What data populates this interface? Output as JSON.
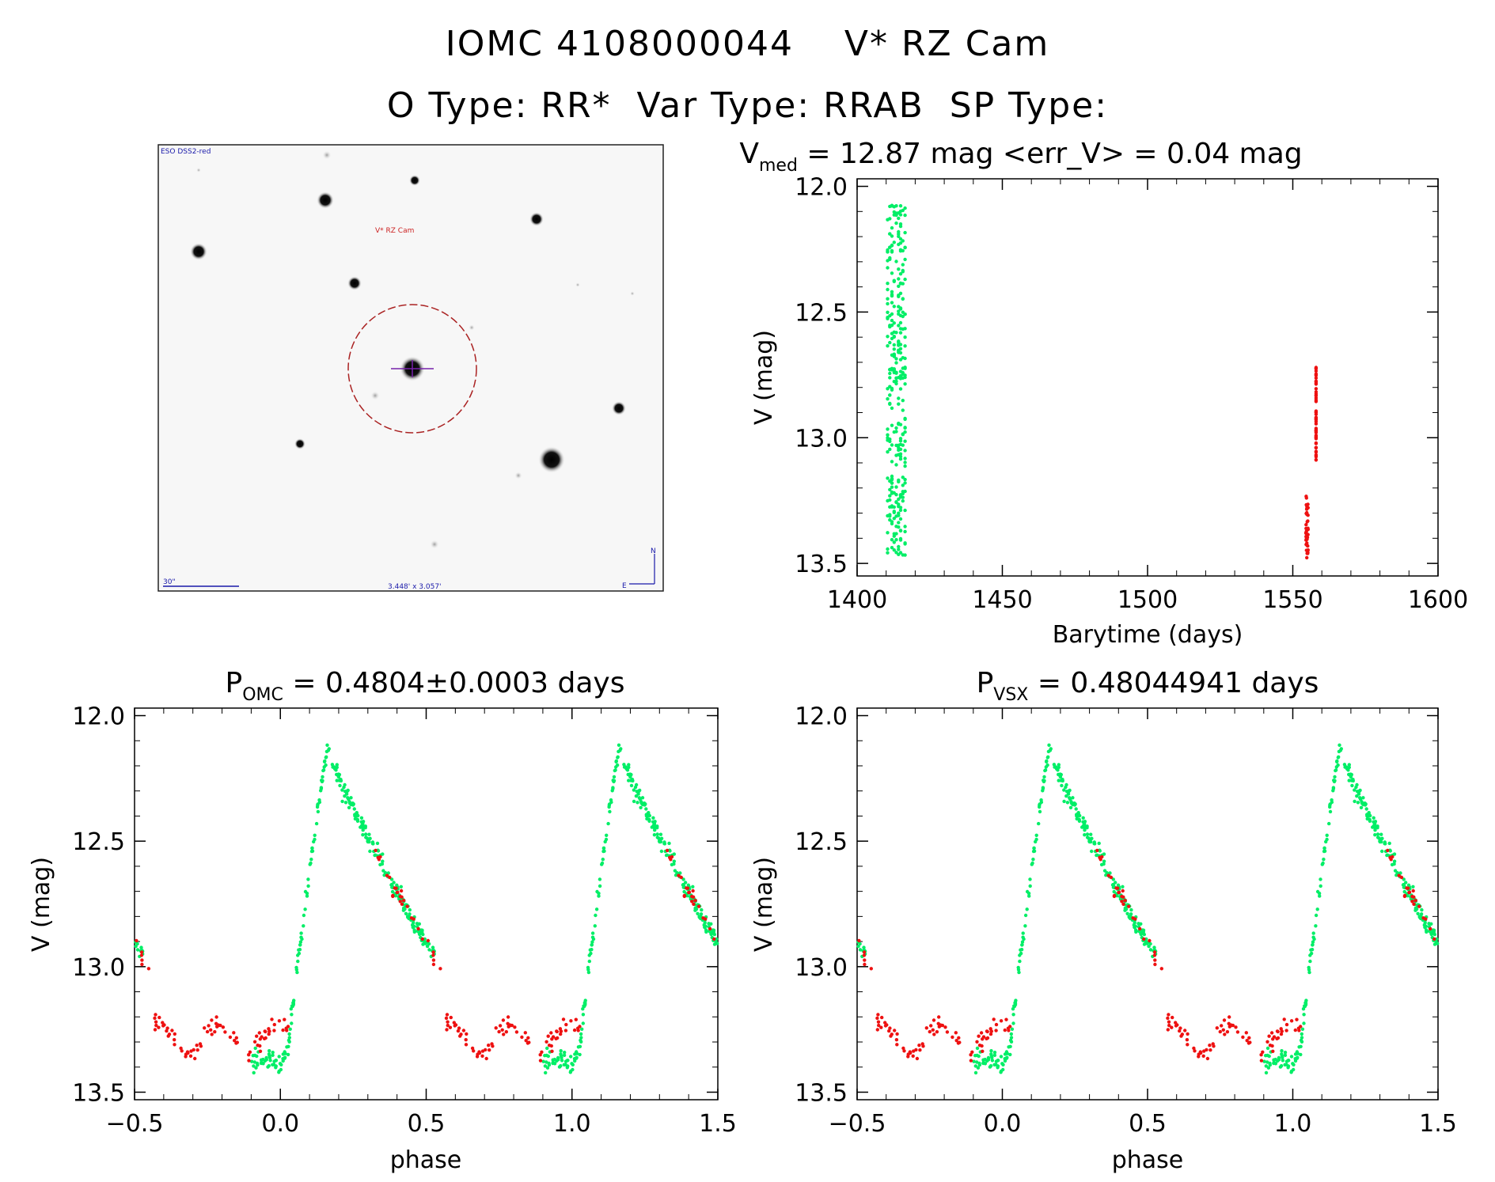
{
  "header": {
    "title_line1": "IOMC 4108000044    V* RZ Cam",
    "title_line2": "O Type: RR*  Var Type: RRAB  SP Type:"
  },
  "image_panel": {
    "survey_label": "ESO DSS2-red",
    "target_label": "V* RZ Cam",
    "scale_label": "30\"",
    "fov_label": "3.448' x 3.057'",
    "north_label": "N",
    "east_label": "E"
  },
  "colors": {
    "series_a": "#00ee66",
    "series_b": "#ee1111",
    "circle": "#aa2222",
    "crosshair": "#7722aa",
    "overlay_text": "#1a1aaa"
  },
  "chart_data": [
    {
      "type": "scatter",
      "title_main": "V",
      "title_sub": "med",
      "title_rest": " = 12.87 mag <err_V> = 0.04 mag",
      "xlabel": "Barytime (days)",
      "ylabel": "V (mag)",
      "xlim": [
        1400,
        1600
      ],
      "ylim": [
        13.55,
        11.97
      ],
      "xticks": [
        "1400",
        "1450",
        "1500",
        "1550",
        "1600"
      ],
      "yticks": [
        "12.0",
        "12.5",
        "13.0",
        "13.5"
      ],
      "series": [
        {
          "x_range": [
            1410.5,
            1416.5
          ],
          "y_range": [
            12.07,
            13.47
          ],
          "count": 320
        },
        {
          "x_range": [
            1554.5,
            1558.0
          ],
          "y_range": [
            12.72,
            13.49
          ],
          "count": 95
        }
      ]
    },
    {
      "type": "scatter",
      "title_main": "P",
      "title_sub": "OMC",
      "title_rest": " = 0.4804±0.0003 days",
      "xlabel": "phase",
      "ylabel": "V (mag)",
      "xlim": [
        -0.5,
        1.5
      ],
      "ylim": [
        13.53,
        11.97
      ],
      "xticks": [
        "−0.5",
        "0.0",
        "0.5",
        "1.0",
        "1.5"
      ],
      "yticks": [
        "12.0",
        "12.5",
        "13.0",
        "13.5"
      ],
      "period": 0.4804,
      "light_curve": {
        "min_phase": 0.0,
        "rise_end": 0.16,
        "max_mag": 12.12,
        "min_mag": 13.4,
        "a_phase_range": [
          0.0,
          0.53
        ],
        "b_phase_range": [
          0.32,
          1.03
        ]
      }
    },
    {
      "type": "scatter",
      "title_main": "P",
      "title_sub": "VSX",
      "title_rest": " = 0.48044941 days",
      "xlabel": "phase",
      "ylabel": "V (mag)",
      "xlim": [
        -0.5,
        1.5
      ],
      "ylim": [
        13.53,
        11.97
      ],
      "xticks": [
        "−0.5",
        "0.0",
        "0.5",
        "1.0",
        "1.5"
      ],
      "yticks": [
        "12.0",
        "12.5",
        "13.0",
        "13.5"
      ],
      "period": 0.48044941,
      "light_curve": {
        "min_phase": 0.0,
        "rise_end": 0.16,
        "max_mag": 12.12,
        "min_mag": 13.4,
        "a_phase_range": [
          0.0,
          0.53
        ],
        "b_phase_range": [
          0.32,
          1.03
        ]
      }
    }
  ]
}
